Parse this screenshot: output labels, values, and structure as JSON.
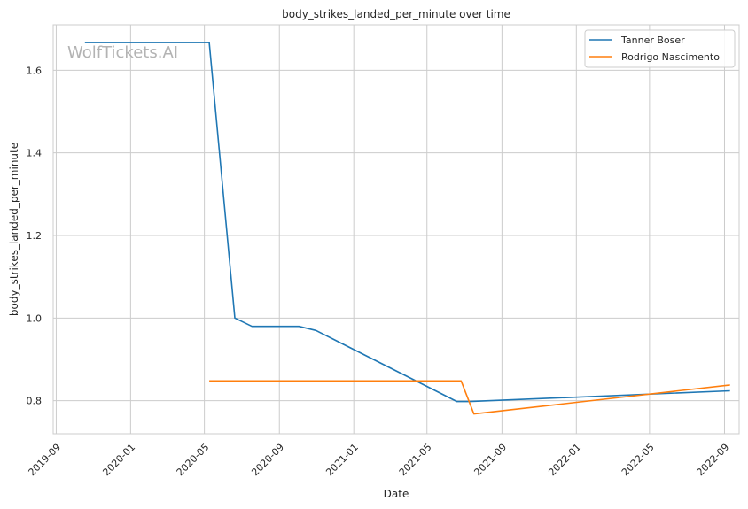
{
  "chart_data": {
    "type": "line",
    "title": "body_strikes_landed_per_minute over time",
    "xlabel": "Date",
    "ylabel": "body_strikes_landed_per_minute",
    "watermark": "WolfTickets.AI",
    "x_ticks": [
      "2019-09",
      "2020-01",
      "2020-05",
      "2020-09",
      "2021-01",
      "2021-05",
      "2021-09",
      "2022-01",
      "2022-05",
      "2022-09"
    ],
    "y_ticks": [
      "0.8",
      "1.0",
      "1.2",
      "1.4",
      "1.6"
    ],
    "xlim": [
      "2019-08-27",
      "2022-09-25"
    ],
    "ylim": [
      0.72,
      1.71
    ],
    "grid": true,
    "legend_position": "top-right",
    "series": [
      {
        "name": "Tanner Boser",
        "color": "#1f77b4",
        "points": [
          {
            "x": "2019-10-18",
            "y": 1.667
          },
          {
            "x": "2020-05-09",
            "y": 1.667
          },
          {
            "x": "2020-06-20",
            "y": 1.0
          },
          {
            "x": "2020-07-18",
            "y": 0.98
          },
          {
            "x": "2020-10-03",
            "y": 0.98
          },
          {
            "x": "2020-10-31",
            "y": 0.97
          },
          {
            "x": "2021-06-19",
            "y": 0.798
          },
          {
            "x": "2021-07-10",
            "y": 0.798
          },
          {
            "x": "2022-09-10",
            "y": 0.824
          }
        ]
      },
      {
        "name": "Rodrigo Nascimento",
        "color": "#ff7f0e",
        "points": [
          {
            "x": "2020-05-09",
            "y": 0.848
          },
          {
            "x": "2021-06-26",
            "y": 0.848
          },
          {
            "x": "2021-07-17",
            "y": 0.768
          },
          {
            "x": "2022-09-10",
            "y": 0.838
          }
        ]
      }
    ]
  }
}
